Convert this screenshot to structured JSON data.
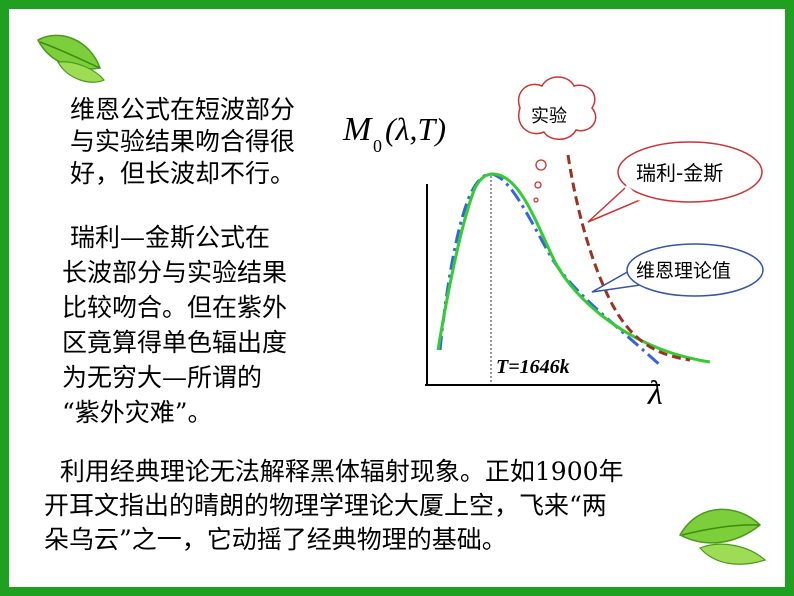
{
  "paragraph_wien": [
    "维恩公式在短波部分",
    "与实验结果吻合得很",
    "好，但长波却不行。"
  ],
  "paragraph_rayleigh": [
    " 瑞利—金斯公式在",
    "长波部分与实验结果",
    "比较吻合。但在紫外",
    "区竟算得单色辐出度",
    "为无穷大—所谓的",
    "“紫外灾难”。"
  ],
  "paragraph_conclusion": [
    "  利用经典理论无法解释黑体辐射现象。正如1900年",
    "开耳文指出的晴朗的物理学理论大厦上空，飞来“两",
    "朵乌云”之一，它动摇了经典物理的基础。"
  ],
  "graph": {
    "y_axis_label_main": "M",
    "y_axis_label_sub": "0",
    "y_axis_label_args": "(λ,T)",
    "x_axis_label": "λ",
    "temperature_label": "T=1646k",
    "callout_experiment": "实验",
    "callout_rayleigh_jeans": "瑞利-金斯",
    "callout_wien": "维恩理论值"
  },
  "colors": {
    "border": "#20a020",
    "experiment_curve": "#33cc33",
    "wien_curve": "#3366dd",
    "rayleigh_curve": "#993322",
    "leaf": "#66bb33"
  }
}
